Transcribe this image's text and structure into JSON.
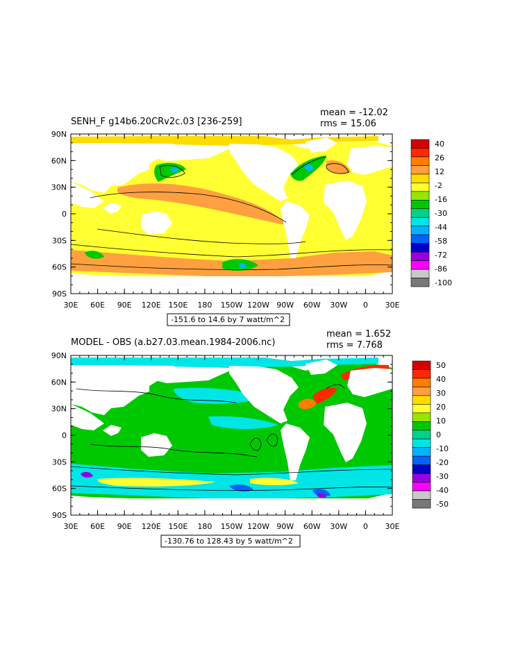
{
  "panels": [
    {
      "title": "SENH_F g14b6.20CRv2c.03 [236-259]",
      "mean": "mean = -12.02",
      "rms": "rms = 15.06",
      "contour_label": "-151.6 to 14.6 by 7 watt/m^2",
      "colorbar_labels": [
        "40",
        "26",
        "12",
        "-2",
        "-16",
        "-30",
        "-44",
        "-58",
        "-72",
        "-86",
        "-100"
      ],
      "colors": [
        "#d50000",
        "#ff2800",
        "#ff7d00",
        "#ffa040",
        "#ffdc00",
        "#ffff32",
        "#96e600",
        "#00c800",
        "#00d28c",
        "#00e6e6",
        "#00b4ff",
        "#0064ff",
        "#0000c8",
        "#9600e1",
        "#ff00ff",
        "#c8c8c8",
        "#787878"
      ]
    },
    {
      "title": "MODEL - OBS (a.b27.03.mean.1984-2006.nc)",
      "mean": "mean = 1.652",
      "rms": "rms = 7.768",
      "contour_label": "-130.76 to 128.43 by 5 watt/m^2",
      "colorbar_labels": [
        "50",
        "40",
        "30",
        "20",
        "10",
        "0",
        "-10",
        "-20",
        "-30",
        "-40",
        "-50"
      ],
      "colors": [
        "#d50000",
        "#ff2800",
        "#ff7d00",
        "#ffa040",
        "#ffdc00",
        "#ffff32",
        "#96e600",
        "#00c800",
        "#00d28c",
        "#00e6e6",
        "#00b4ff",
        "#0064ff",
        "#0000c8",
        "#9600e1",
        "#ff00ff",
        "#c8c8c8",
        "#787878"
      ]
    }
  ],
  "axes": {
    "lat_labels": [
      "90N",
      "60N",
      "30N",
      "0",
      "30S",
      "60S",
      "90S"
    ],
    "lon_labels": [
      "30E",
      "60E",
      "90E",
      "120E",
      "150E",
      "180",
      "150W",
      "120W",
      "90W",
      "60W",
      "30W",
      "0",
      "30E"
    ]
  },
  "chart_data": [
    {
      "type": "heatmap",
      "title": "SENH_F g14b6.20CRv2c.03 [236-259]",
      "variable": "SENH_F",
      "units": "watt/m^2",
      "mean": -12.02,
      "rms": 15.06,
      "contour_min": -151.6,
      "contour_max": 14.6,
      "contour_interval": 7,
      "colorbar_ticks": [
        40,
        26,
        12,
        -2,
        -16,
        -30,
        -44,
        -58,
        -72,
        -86,
        -100
      ],
      "x_range": [
        "30E",
        "30E"
      ],
      "y_range": [
        "90S",
        "90N"
      ]
    },
    {
      "type": "heatmap",
      "title": "MODEL - OBS (a.b27.03.mean.1984-2006.nc)",
      "units": "watt/m^2",
      "mean": 1.652,
      "rms": 7.768,
      "contour_min": -130.76,
      "contour_max": 128.43,
      "contour_interval": 5,
      "colorbar_ticks": [
        50,
        40,
        30,
        20,
        10,
        0,
        -10,
        -20,
        -30,
        -40,
        -50
      ],
      "x_range": [
        "30E",
        "30E"
      ],
      "y_range": [
        "90S",
        "90N"
      ]
    }
  ]
}
